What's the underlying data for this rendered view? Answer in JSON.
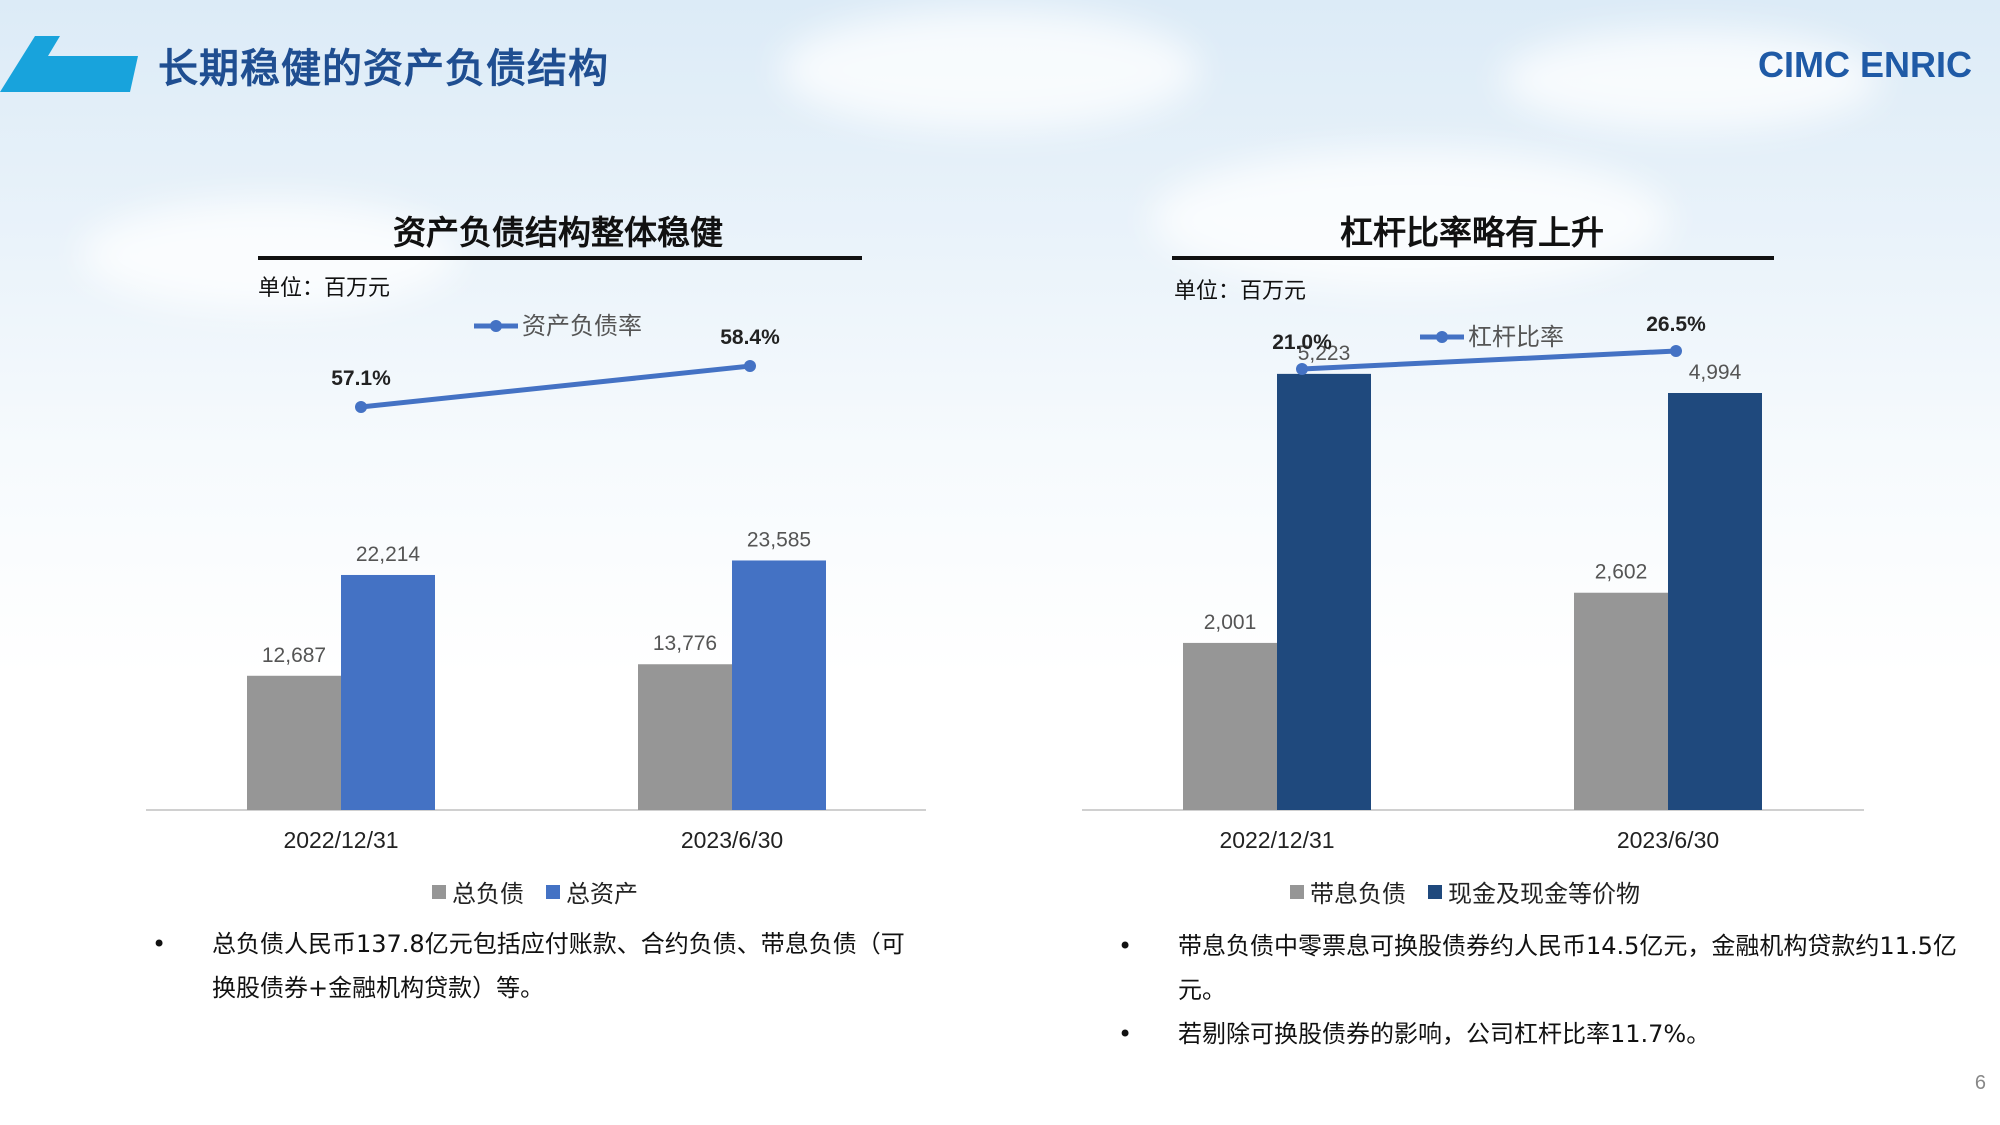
{
  "page": {
    "title": "长期稳健的资产负债结构",
    "brand": "CIMC ENRIC",
    "page_number": "6"
  },
  "colors": {
    "gray": "#969696",
    "blue": "#4472c4",
    "navy": "#1f497d",
    "line": "#4472c4",
    "title": "#1f4e91"
  },
  "left": {
    "title": "资产负债结构整体稳健",
    "unit": "单位：百万元",
    "legend": [
      "总负债",
      "总资产"
    ],
    "bullets": [
      "总负债人民币137.8亿元包括应付账款、合约负债、带息负债（可换股债券+金融机构贷款）等。"
    ]
  },
  "right": {
    "title": "杠杆比率略有上升",
    "unit": "单位：百万元",
    "legend": [
      "带息负债",
      "现金及现金等价物"
    ],
    "bullets": [
      "带息负债中零票息可换股债券约人民币14.5亿元，金融机构贷款约11.5亿元。",
      "若剔除可换股债券的影响，公司杠杆比率11.7%。"
    ]
  },
  "chart_data": [
    {
      "type": "bar",
      "categories": [
        "2022/12/31",
        "2023/6/30"
      ],
      "series": [
        {
          "name": "总负债",
          "values": [
            12687,
            13776
          ],
          "labels": [
            "12,687",
            "13,776"
          ],
          "color": "#969696"
        },
        {
          "name": "总资产",
          "values": [
            22214,
            23585
          ],
          "labels": [
            "22,214",
            "23,585"
          ],
          "color": "#4472c4"
        }
      ],
      "line_series": {
        "name": "资产负债率",
        "values": [
          57.1,
          58.4
        ],
        "labels": [
          "57.1%",
          "58.4%"
        ],
        "color": "#4472c4"
      },
      "legend_position": "bottom"
    },
    {
      "type": "bar",
      "categories": [
        "2022/12/31",
        "2023/6/30"
      ],
      "series": [
        {
          "name": "带息负债",
          "values": [
            2001,
            2602
          ],
          "labels": [
            "2,001",
            "2,602"
          ],
          "color": "#969696"
        },
        {
          "name": "现金及现金等价物",
          "values": [
            5223,
            4994
          ],
          "labels": [
            "5,223",
            "4,994"
          ],
          "color": "#1f497d"
        }
      ],
      "line_series": {
        "name": "杠杆比率",
        "values": [
          21.0,
          26.5
        ],
        "labels": [
          "21.0%",
          "26.5%"
        ],
        "color": "#4472c4"
      },
      "legend_position": "bottom"
    }
  ]
}
